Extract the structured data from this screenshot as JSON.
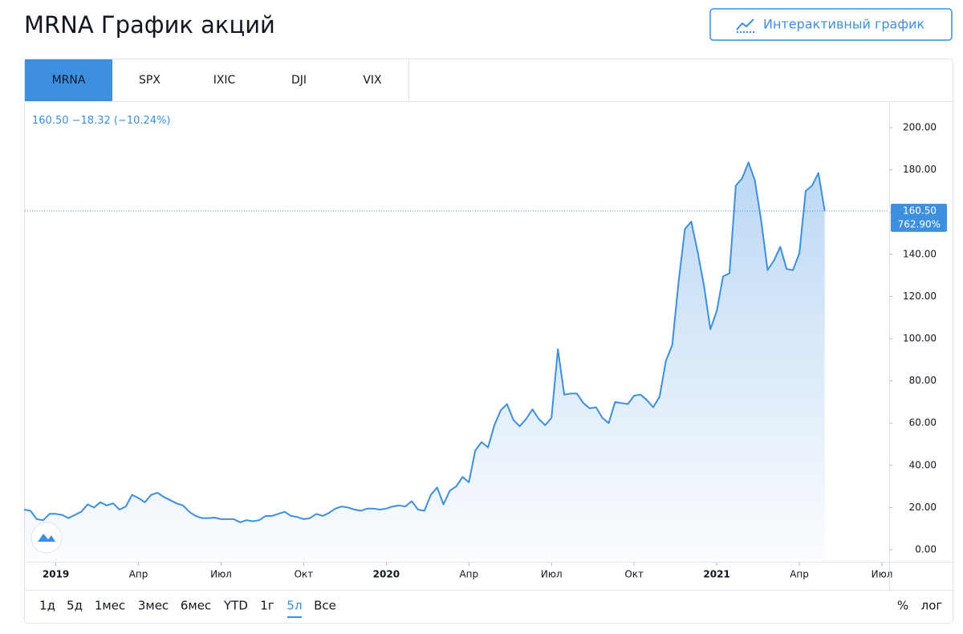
{
  "header": {
    "title": "MRNA График акций",
    "button": "Интерактивный график"
  },
  "tabs": [
    "MRNA",
    "SPX",
    "IXIC",
    "DJI",
    "VIX"
  ],
  "active_tab": 0,
  "ranges": [
    "1д",
    "5д",
    "1мес",
    "3мес",
    "6мес",
    "YTD",
    "1г",
    "5л",
    "Все"
  ],
  "active_range": 7,
  "scale_options": [
    "%",
    "лог"
  ],
  "chart_data": {
    "type": "line",
    "quote": {
      "price": "160.50",
      "change": "−18.32",
      "change_pct": "(−10.24%)"
    },
    "price_line": {
      "value": 160.5,
      "label": "160.50",
      "percent_label": "762.90%"
    },
    "color": "#3d8fe0",
    "categories": [
      null,
      null,
      null,
      null,
      null,
      "2019",
      null,
      null,
      null,
      null,
      null,
      null,
      null,
      null,
      null,
      null,
      null,
      null,
      "Апр",
      null,
      null,
      null,
      null,
      null,
      null,
      null,
      null,
      null,
      null,
      null,
      null,
      "Июл",
      null,
      null,
      null,
      null,
      null,
      null,
      null,
      null,
      null,
      null,
      null,
      null,
      "Окт",
      null,
      null,
      null,
      null,
      null,
      null,
      null,
      null,
      null,
      null,
      null,
      null,
      "2020",
      null,
      null,
      null,
      null,
      null,
      null,
      null,
      null,
      null,
      null,
      null,
      null,
      "Апр",
      null,
      null,
      null,
      null,
      null,
      null,
      null,
      null,
      null,
      null,
      null,
      null,
      "Июл",
      null,
      null,
      null,
      null,
      null,
      null,
      null,
      null,
      null,
      null,
      null,
      null,
      "Окт",
      null,
      null,
      null,
      null,
      null,
      null,
      null,
      null,
      null,
      null,
      null,
      null,
      "2021",
      null,
      null,
      null,
      null,
      null,
      null,
      null,
      null,
      null,
      null,
      null,
      null,
      "Апр",
      null,
      null,
      null,
      null,
      null,
      null,
      null,
      null,
      null,
      null,
      null,
      null,
      "Июл"
    ],
    "values": [
      19,
      18.5,
      14.5,
      14,
      17,
      17,
      16.5,
      15,
      16.5,
      18,
      21.5,
      20,
      22.5,
      21,
      22,
      19,
      20.5,
      26,
      24.5,
      22.5,
      26,
      27,
      25,
      23.5,
      22,
      21,
      18,
      16,
      15,
      15,
      15.2,
      14.5,
      14.5,
      14.5,
      13,
      14,
      13.5,
      14,
      16,
      16,
      17,
      18,
      16,
      15.5,
      14.5,
      15,
      17,
      16,
      17.5,
      19.5,
      20.5,
      20,
      19,
      18.5,
      19.5,
      19.5,
      19,
      19.5,
      20.5,
      21,
      20.5,
      23,
      19,
      18.5,
      26,
      29.5,
      21.5,
      28,
      30,
      34.5,
      32,
      47,
      51,
      48.5,
      59,
      66,
      69,
      61.5,
      58.5,
      62,
      66.5,
      62,
      59,
      62.5,
      95,
      73.5,
      74,
      74,
      69.5,
      67,
      67.5,
      62.5,
      60,
      70,
      69.5,
      69,
      73,
      73.5,
      71,
      67.5,
      72.5,
      89.5,
      97,
      127,
      152,
      155.5,
      141,
      125,
      104.5,
      113,
      129.5,
      131,
      172.5,
      176,
      183.5,
      175,
      156,
      132.5,
      137,
      143.5,
      133,
      132.5,
      140.5,
      170,
      172.5,
      178.5,
      160.5,
      null,
      null,
      null,
      null,
      null,
      null,
      null,
      null,
      null
    ],
    "ylim": [
      -5.7,
      211.8
    ],
    "yticks": [
      {
        "value": 0,
        "label": "0.00"
      },
      {
        "value": 20,
        "label": "20.00"
      },
      {
        "value": 40,
        "label": "40.00"
      },
      {
        "value": 60,
        "label": "60.00"
      },
      {
        "value": 80,
        "label": "80.00"
      },
      {
        "value": 100,
        "label": "100.00"
      },
      {
        "value": 120,
        "label": "120.00"
      },
      {
        "value": 140,
        "label": "140.00"
      },
      {
        "value": 160,
        "label": "160.00"
      },
      {
        "value": 180,
        "label": "180.00"
      },
      {
        "value": 200,
        "label": "200.00"
      }
    ]
  }
}
